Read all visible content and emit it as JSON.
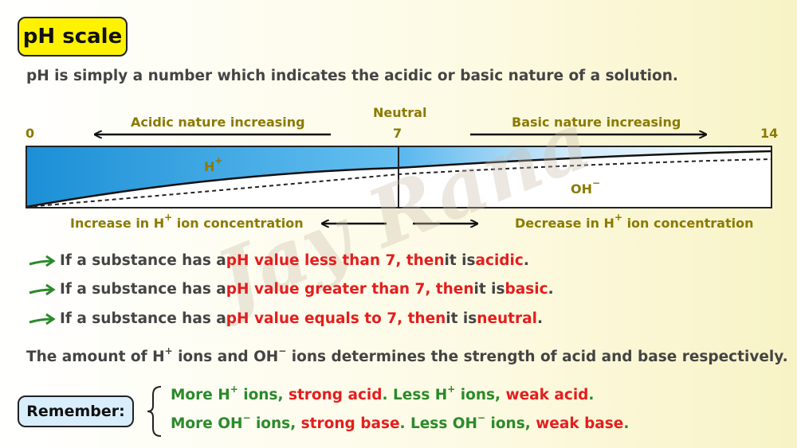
{
  "title": "pH scale",
  "intro": "pH is simply a number which indicates the acidic or basic nature of a solution.",
  "scale": {
    "min": "0",
    "mid": "7",
    "max": "14",
    "neutral": "Neutral",
    "acidic_increasing": "Acidic nature increasing",
    "basic_increasing": "Basic nature increasing",
    "h_label": "H",
    "h_sup": "+",
    "oh_label": "OH",
    "oh_sup": "−",
    "increase_h_pre": "Increase in H",
    "increase_h_sup": "+",
    "increase_h_post": " ion concentration",
    "decrease_h_pre": "Decrease in H",
    "decrease_h_sup": "+",
    "decrease_h_post": " ion concentration"
  },
  "watermark": "Jay Rana",
  "rules": [
    {
      "pre": "If a substance has a ",
      "highlight": "pH value less than 7, then",
      "mid": " it is ",
      "result": "acidic",
      "end": "."
    },
    {
      "pre": "If a substance has a ",
      "highlight": "pH value greater than 7, then",
      "mid": " it is ",
      "result": "basic",
      "end": "."
    },
    {
      "pre": "If a substance has a ",
      "highlight": "pH value equals to 7, then",
      "mid": " it is ",
      "result": "neutral",
      "end": "."
    }
  ],
  "strength": {
    "p1": "The amount of H",
    "sup1": "+",
    "p2": " ions and OH",
    "sup2": "−",
    "p3": " ions determines the strength of acid and base respectively."
  },
  "remember": {
    "label": "Remember:",
    "line1": {
      "a": "More H",
      "a_sup": "+",
      "b": " ions, ",
      "c": "strong acid",
      "d": ". Less H",
      "d_sup": "+",
      "e": " ions, ",
      "f": "weak acid",
      "g": "."
    },
    "line2": {
      "a": "More OH",
      "a_sup": "−",
      "b": " ions, ",
      "c": "strong base",
      "d": ". Less OH",
      "d_sup": "−",
      "e": " ions, ",
      "f": "weak base",
      "g": "."
    }
  },
  "colors": {
    "highlight": "#e31e1e",
    "remember_text": "#2b8a2b",
    "label_olive": "#8a7a00",
    "scale_blue": "#1b8fd6",
    "title_bg": "#fff200",
    "remember_bg": "#d9eefc"
  }
}
